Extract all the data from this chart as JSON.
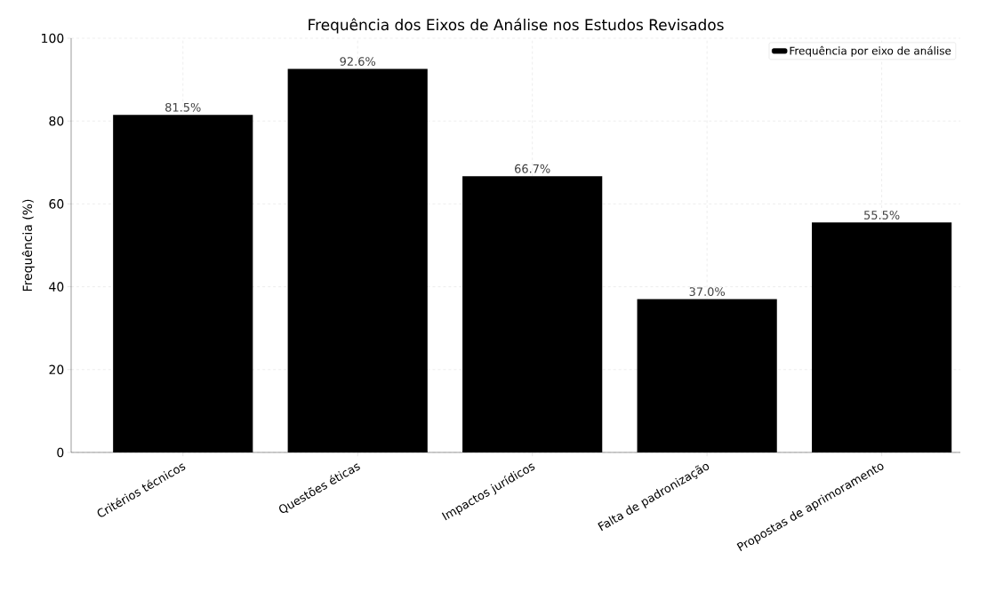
{
  "chart_data": {
    "type": "bar",
    "title": "Frequência dos Eixos de Análise nos Estudos Revisados",
    "ylabel": "Frequência (%)",
    "categories": [
      "Critérios técnicos",
      "Questões éticas",
      "Impactos jurídicos",
      "Falta de padronização",
      "Propostas de aprimoramento"
    ],
    "series": [
      {
        "name": "Frequência por eixo de análise",
        "color": "#000000",
        "values": [
          81.5,
          92.6,
          66.7,
          37.0,
          55.5
        ],
        "value_labels": [
          "81.5%",
          "92.6%",
          "66.7%",
          "37.0%",
          "55.5%"
        ]
      }
    ],
    "ylim": [
      0,
      100
    ],
    "yticks": [
      0,
      20,
      40,
      60,
      80,
      100
    ],
    "grid": true,
    "legend": "top right"
  }
}
